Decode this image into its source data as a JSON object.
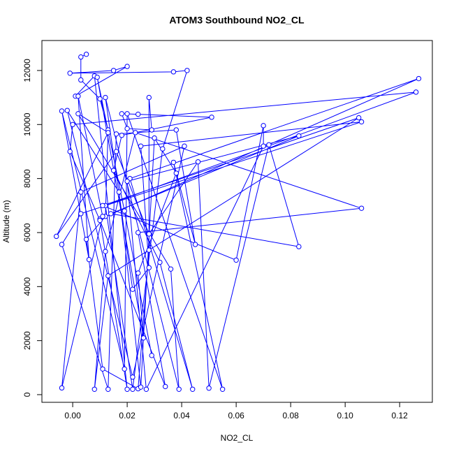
{
  "chart_data": {
    "type": "line",
    "title": "ATOM3 Southbound NO2_CL",
    "x_label": "NO2_CL",
    "y_label": "Altitude (m)",
    "color": "#0000ff",
    "markers": true,
    "x": [
      0.005,
      0.003,
      0.003,
      0.01,
      0.013,
      0.012,
      0.005,
      0.011,
      0.024,
      0.028,
      0.028,
      0.029,
      0.02,
      0.018,
      0.024,
      0.051,
      0.018,
      0.015,
      0.032,
      0.044,
      0.021,
      0.127,
      0.01,
      0.02,
      0.008,
      0.001,
      0.02,
      0.015,
      -0.001,
      0.037,
      0.042,
      0.033,
      0.022,
      0.012,
      0.126,
      0.0,
      -0.001,
      0.01,
      0.034,
      0.024,
      0.106,
      0.023,
      0.012,
      0.008,
      0.013,
      0.105,
      0.011,
      0.06,
      0.07,
      0.07,
      0.027,
      0.02,
      0.083,
      0.014,
      0.083,
      0.072,
      0.05,
      0.046,
      0.028,
      0.016,
      -0.006,
      0.013,
      0.002,
      0.036,
      0.039,
      0.012,
      0.022,
      0.028,
      0.025,
      0.106,
      0.003,
      -0.004,
      0.013,
      0.016,
      0.038,
      0.045,
      0.037,
      0.055,
      0.02,
      0.019,
      -0.004,
      0.006,
      0.002,
      0.011,
      -0.004,
      0.003,
      0.041,
      0.022,
      -0.002,
      0.017,
      0.025,
      0.03,
      0.038,
      0.024,
      0.026,
      0.009,
      0.019,
      0.029
    ],
    "values": [
      12600,
      12500,
      11650,
      10950,
      9800,
      6600,
      5750,
      950,
      220,
      5350,
      11000,
      9800,
      9850,
      10400,
      10380,
      10270,
      9600,
      8300,
      4900,
      200,
      8000,
      11700,
      6500,
      200,
      11800,
      11050,
      12150,
      12000,
      11900,
      11950,
      12000,
      9100,
      200,
      7000,
      11200,
      10000,
      9000,
      6450,
      300,
      6000,
      6900,
      9700,
      5300,
      200,
      4400,
      10250,
      7000,
      4980,
      9960,
      9200,
      200,
      7900,
      9580,
      6700,
      5480,
      9250,
      240,
      8620,
      5950,
      9000,
      5860,
      9700,
      10400,
      4650,
      200,
      11000,
      3900,
      4700,
      9200,
      10100,
      6700,
      5560,
      200,
      9650,
      9800,
      5560,
      8600,
      200,
      10400,
      950,
      10500,
      5000,
      11050,
      6600,
      250,
      7500,
      9200,
      650,
      10520,
      7500,
      280,
      9500,
      8200,
      4500,
      2100,
      11750,
      6800,
      1450
    ],
    "xlim": [
      -0.0113,
      0.132
    ],
    "ylim": [
      -284,
      13110
    ],
    "xticks": [
      {
        "value": 0,
        "label": "0.00"
      },
      {
        "value": 0.02,
        "label": "0.02"
      },
      {
        "value": 0.04,
        "label": "0.04"
      },
      {
        "value": 0.06,
        "label": "0.06"
      },
      {
        "value": 0.08,
        "label": "0.08"
      },
      {
        "value": 0.1,
        "label": "0.10"
      },
      {
        "value": 0.12,
        "label": "0.12"
      }
    ],
    "yticks": [
      0,
      2000,
      4000,
      6000,
      8000,
      10000,
      12000
    ]
  }
}
